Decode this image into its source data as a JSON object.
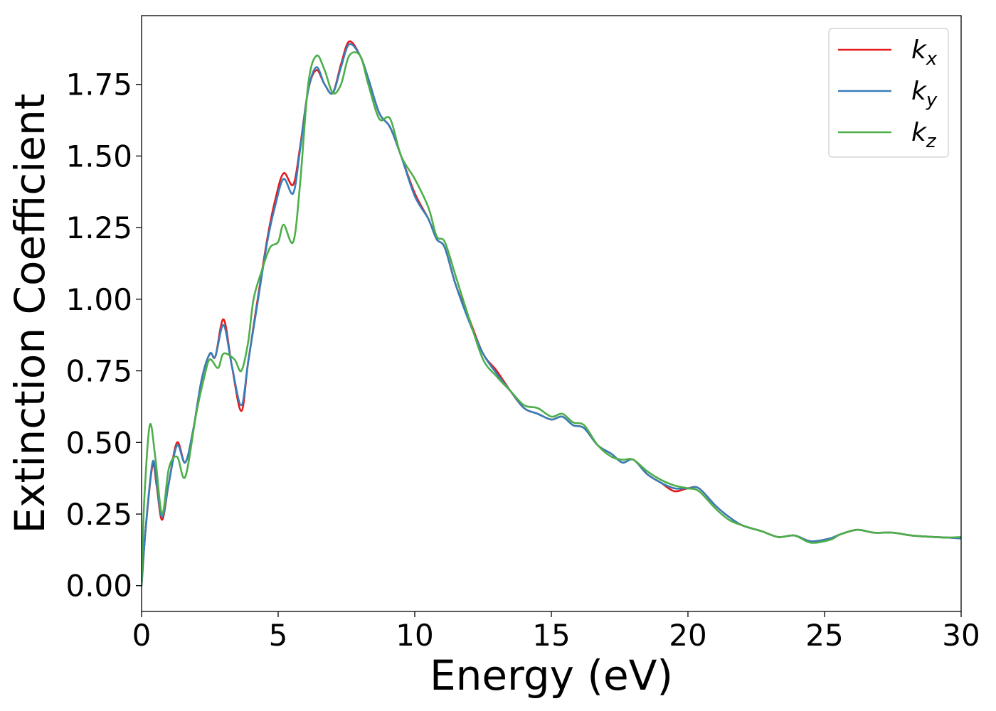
{
  "chart_data": {
    "type": "line",
    "title": "",
    "xlabel": "Energy (eV)",
    "ylabel": "Extinction Coefficient",
    "xlim": [
      0,
      30
    ],
    "ylim": [
      -0.09,
      1.99
    ],
    "x_ticks": [
      0,
      5,
      10,
      15,
      20,
      25,
      30
    ],
    "x_tick_labels": [
      "0",
      "5",
      "10",
      "15",
      "20",
      "25",
      "30"
    ],
    "y_ticks": [
      0,
      0.25,
      0.5,
      0.75,
      1.0,
      1.25,
      1.5,
      1.75
    ],
    "y_tick_labels": [
      "0.00",
      "0.25",
      "0.50",
      "0.75",
      "1.00",
      "1.25",
      "1.50",
      "1.75"
    ],
    "grid": false,
    "legend_position": "top-right",
    "series": [
      {
        "name": "k_x",
        "label_base": "k",
        "label_sub": "x",
        "color": "#e41a1c",
        "points": [
          [
            0,
            0.0
          ],
          [
            0.15,
            0.2
          ],
          [
            0.4,
            0.42
          ],
          [
            0.55,
            0.35
          ],
          [
            0.75,
            0.23
          ],
          [
            1.0,
            0.36
          ],
          [
            1.3,
            0.5
          ],
          [
            1.6,
            0.43
          ],
          [
            1.9,
            0.55
          ],
          [
            2.2,
            0.72
          ],
          [
            2.5,
            0.81
          ],
          [
            2.7,
            0.8
          ],
          [
            3.0,
            0.93
          ],
          [
            3.3,
            0.77
          ],
          [
            3.65,
            0.61
          ],
          [
            3.9,
            0.78
          ],
          [
            4.2,
            0.97
          ],
          [
            4.6,
            1.21
          ],
          [
            4.9,
            1.35
          ],
          [
            5.2,
            1.44
          ],
          [
            5.55,
            1.4
          ],
          [
            5.8,
            1.53
          ],
          [
            6.1,
            1.73
          ],
          [
            6.4,
            1.8
          ],
          [
            6.7,
            1.75
          ],
          [
            7.0,
            1.72
          ],
          [
            7.3,
            1.82
          ],
          [
            7.6,
            1.9
          ],
          [
            8.0,
            1.85
          ],
          [
            8.3,
            1.77
          ],
          [
            8.7,
            1.65
          ],
          [
            9.1,
            1.6
          ],
          [
            9.5,
            1.5
          ],
          [
            10.0,
            1.37
          ],
          [
            10.5,
            1.28
          ],
          [
            10.8,
            1.21
          ],
          [
            11.1,
            1.18
          ],
          [
            11.5,
            1.05
          ],
          [
            12.0,
            0.93
          ],
          [
            12.5,
            0.81
          ],
          [
            13.0,
            0.75
          ],
          [
            13.5,
            0.68
          ],
          [
            14.0,
            0.62
          ],
          [
            14.5,
            0.6
          ],
          [
            15.0,
            0.58
          ],
          [
            15.4,
            0.59
          ],
          [
            15.8,
            0.56
          ],
          [
            16.2,
            0.55
          ],
          [
            16.7,
            0.49
          ],
          [
            17.2,
            0.46
          ],
          [
            17.6,
            0.43
          ],
          [
            18.0,
            0.44
          ],
          [
            18.5,
            0.39
          ],
          [
            19.0,
            0.36
          ],
          [
            19.5,
            0.33
          ],
          [
            20.0,
            0.34
          ],
          [
            20.4,
            0.34
          ],
          [
            21.0,
            0.28
          ],
          [
            21.5,
            0.24
          ],
          [
            22.0,
            0.21
          ],
          [
            22.7,
            0.19
          ],
          [
            23.3,
            0.17
          ],
          [
            23.9,
            0.175
          ],
          [
            24.5,
            0.155
          ],
          [
            25.2,
            0.165
          ],
          [
            25.6,
            0.18
          ],
          [
            26.2,
            0.195
          ],
          [
            26.8,
            0.185
          ],
          [
            27.5,
            0.185
          ],
          [
            28.2,
            0.175
          ],
          [
            29.0,
            0.17
          ],
          [
            29.5,
            0.168
          ],
          [
            30.0,
            0.165
          ]
        ]
      },
      {
        "name": "k_y",
        "label_base": "k",
        "label_sub": "y",
        "color": "#377eb8",
        "points": [
          [
            0,
            0.0
          ],
          [
            0.15,
            0.2
          ],
          [
            0.4,
            0.43
          ],
          [
            0.55,
            0.36
          ],
          [
            0.75,
            0.24
          ],
          [
            1.0,
            0.36
          ],
          [
            1.3,
            0.49
          ],
          [
            1.6,
            0.43
          ],
          [
            1.9,
            0.55
          ],
          [
            2.2,
            0.72
          ],
          [
            2.5,
            0.81
          ],
          [
            2.7,
            0.8
          ],
          [
            3.0,
            0.91
          ],
          [
            3.3,
            0.77
          ],
          [
            3.65,
            0.63
          ],
          [
            3.9,
            0.78
          ],
          [
            4.2,
            0.96
          ],
          [
            4.6,
            1.2
          ],
          [
            4.9,
            1.33
          ],
          [
            5.2,
            1.42
          ],
          [
            5.55,
            1.37
          ],
          [
            5.8,
            1.52
          ],
          [
            6.1,
            1.73
          ],
          [
            6.4,
            1.81
          ],
          [
            6.7,
            1.75
          ],
          [
            7.0,
            1.72
          ],
          [
            7.3,
            1.81
          ],
          [
            7.6,
            1.89
          ],
          [
            8.0,
            1.85
          ],
          [
            8.3,
            1.77
          ],
          [
            8.7,
            1.65
          ],
          [
            9.1,
            1.6
          ],
          [
            9.5,
            1.5
          ],
          [
            10.0,
            1.36
          ],
          [
            10.5,
            1.28
          ],
          [
            10.8,
            1.21
          ],
          [
            11.1,
            1.18
          ],
          [
            11.5,
            1.05
          ],
          [
            12.0,
            0.92
          ],
          [
            12.5,
            0.81
          ],
          [
            13.0,
            0.74
          ],
          [
            13.5,
            0.68
          ],
          [
            14.0,
            0.62
          ],
          [
            14.5,
            0.6
          ],
          [
            15.0,
            0.58
          ],
          [
            15.4,
            0.59
          ],
          [
            15.8,
            0.56
          ],
          [
            16.2,
            0.55
          ],
          [
            16.7,
            0.49
          ],
          [
            17.2,
            0.46
          ],
          [
            17.6,
            0.43
          ],
          [
            18.0,
            0.44
          ],
          [
            18.5,
            0.39
          ],
          [
            19.0,
            0.36
          ],
          [
            19.5,
            0.34
          ],
          [
            20.0,
            0.34
          ],
          [
            20.4,
            0.34
          ],
          [
            21.0,
            0.28
          ],
          [
            21.5,
            0.24
          ],
          [
            22.0,
            0.21
          ],
          [
            22.7,
            0.19
          ],
          [
            23.3,
            0.17
          ],
          [
            23.9,
            0.175
          ],
          [
            24.5,
            0.155
          ],
          [
            25.2,
            0.165
          ],
          [
            25.6,
            0.18
          ],
          [
            26.2,
            0.195
          ],
          [
            26.8,
            0.185
          ],
          [
            27.5,
            0.185
          ],
          [
            28.2,
            0.175
          ],
          [
            29.0,
            0.17
          ],
          [
            29.5,
            0.168
          ],
          [
            30.0,
            0.165
          ]
        ]
      },
      {
        "name": "k_z",
        "label_base": "k",
        "label_sub": "z",
        "color": "#4daf4a",
        "points": [
          [
            0,
            0.0
          ],
          [
            0.1,
            0.3
          ],
          [
            0.3,
            0.56
          ],
          [
            0.5,
            0.45
          ],
          [
            0.75,
            0.25
          ],
          [
            1.0,
            0.41
          ],
          [
            1.3,
            0.45
          ],
          [
            1.6,
            0.38
          ],
          [
            2.0,
            0.6
          ],
          [
            2.3,
            0.73
          ],
          [
            2.5,
            0.79
          ],
          [
            2.8,
            0.76
          ],
          [
            3.0,
            0.81
          ],
          [
            3.4,
            0.79
          ],
          [
            3.65,
            0.75
          ],
          [
            3.9,
            0.85
          ],
          [
            4.1,
            1.0
          ],
          [
            4.4,
            1.1
          ],
          [
            4.7,
            1.18
          ],
          [
            5.0,
            1.2
          ],
          [
            5.2,
            1.26
          ],
          [
            5.55,
            1.2
          ],
          [
            5.8,
            1.4
          ],
          [
            6.1,
            1.75
          ],
          [
            6.4,
            1.85
          ],
          [
            6.7,
            1.8
          ],
          [
            7.0,
            1.72
          ],
          [
            7.3,
            1.75
          ],
          [
            7.6,
            1.85
          ],
          [
            8.0,
            1.85
          ],
          [
            8.3,
            1.75
          ],
          [
            8.7,
            1.63
          ],
          [
            9.1,
            1.63
          ],
          [
            9.5,
            1.5
          ],
          [
            10.0,
            1.42
          ],
          [
            10.5,
            1.32
          ],
          [
            10.8,
            1.22
          ],
          [
            11.1,
            1.2
          ],
          [
            11.5,
            1.08
          ],
          [
            12.0,
            0.93
          ],
          [
            12.5,
            0.79
          ],
          [
            13.0,
            0.73
          ],
          [
            13.5,
            0.68
          ],
          [
            14.0,
            0.63
          ],
          [
            14.5,
            0.62
          ],
          [
            15.0,
            0.59
          ],
          [
            15.4,
            0.6
          ],
          [
            15.8,
            0.57
          ],
          [
            16.2,
            0.56
          ],
          [
            16.7,
            0.49
          ],
          [
            17.2,
            0.45
          ],
          [
            17.6,
            0.44
          ],
          [
            18.0,
            0.44
          ],
          [
            18.5,
            0.4
          ],
          [
            19.0,
            0.37
          ],
          [
            19.5,
            0.35
          ],
          [
            20.0,
            0.34
          ],
          [
            20.4,
            0.33
          ],
          [
            21.0,
            0.27
          ],
          [
            21.5,
            0.23
          ],
          [
            22.0,
            0.21
          ],
          [
            22.7,
            0.19
          ],
          [
            23.3,
            0.17
          ],
          [
            23.9,
            0.175
          ],
          [
            24.5,
            0.15
          ],
          [
            25.2,
            0.16
          ],
          [
            25.6,
            0.18
          ],
          [
            26.2,
            0.195
          ],
          [
            26.8,
            0.185
          ],
          [
            27.5,
            0.185
          ],
          [
            28.2,
            0.175
          ],
          [
            29.0,
            0.17
          ],
          [
            29.5,
            0.168
          ],
          [
            30.0,
            0.17
          ]
        ]
      }
    ]
  }
}
